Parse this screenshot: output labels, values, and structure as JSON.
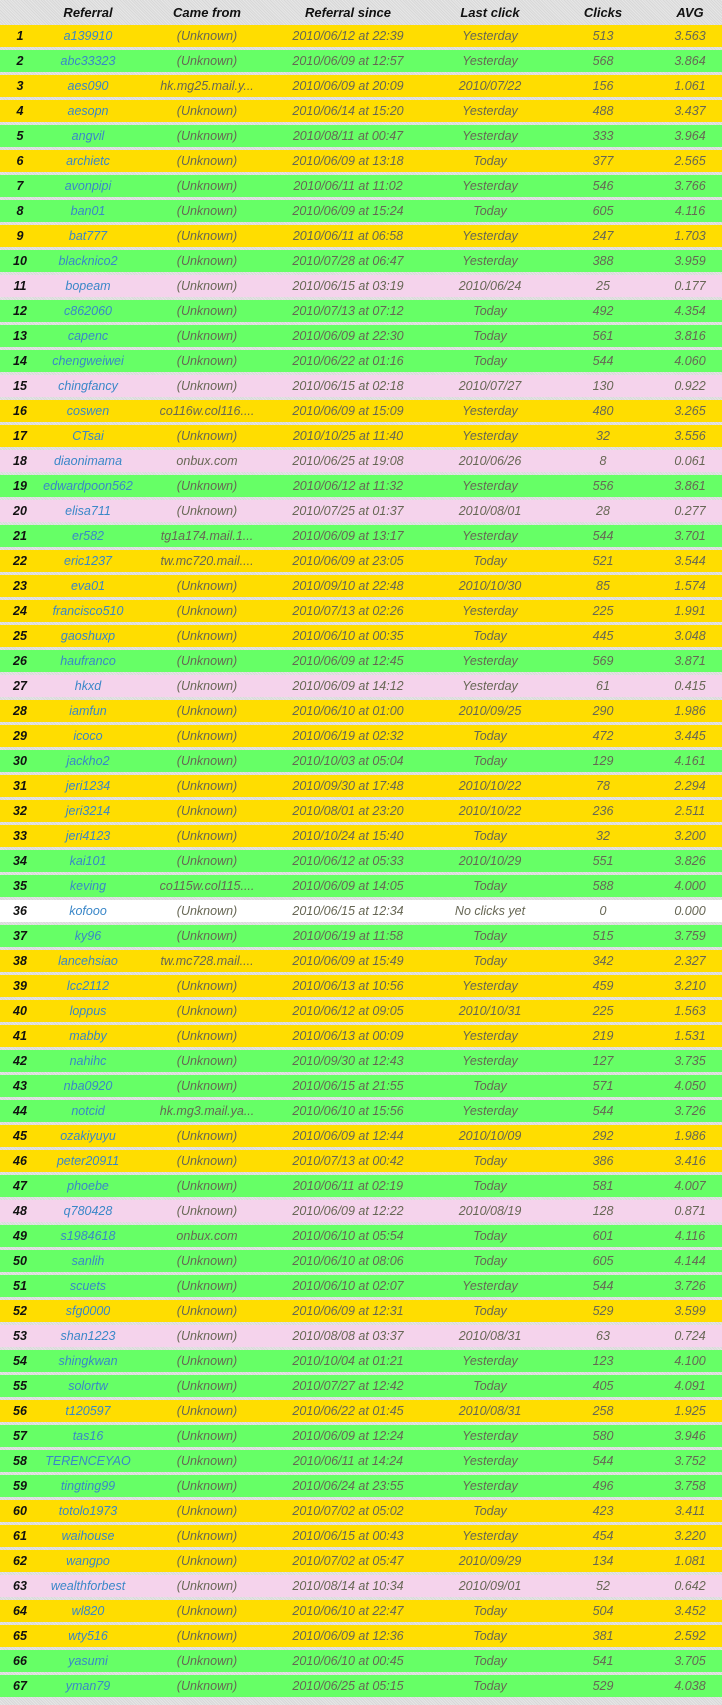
{
  "colors": {
    "yellow": "#ffdd00",
    "green": "#66ff66",
    "pink": "#f5d3ec",
    "white": "#ffffff"
  },
  "headers": {
    "referral": "Referral",
    "came_from": "Came from",
    "since": "Referral since",
    "last_click": "Last click",
    "clicks": "Clicks",
    "avg": "AVG"
  },
  "rows": [
    [
      "1",
      "a139910",
      "(Unknown)",
      "2010/06/12 at 22:39",
      "Yesterday",
      "513",
      "3.563",
      "yellow"
    ],
    [
      "2",
      "abc33323",
      "(Unknown)",
      "2010/06/09 at 12:57",
      "Yesterday",
      "568",
      "3.864",
      "green"
    ],
    [
      "3",
      "aes090",
      "hk.mg25.mail.y...",
      "2010/06/09 at 20:09",
      "2010/07/22",
      "156",
      "1.061",
      "yellow"
    ],
    [
      "4",
      "aesopn",
      "(Unknown)",
      "2010/06/14 at 15:20",
      "Yesterday",
      "488",
      "3.437",
      "yellow"
    ],
    [
      "5",
      "angvil",
      "(Unknown)",
      "2010/08/11 at 00:47",
      "Yesterday",
      "333",
      "3.964",
      "green"
    ],
    [
      "6",
      "archietc",
      "(Unknown)",
      "2010/06/09 at 13:18",
      "Today",
      "377",
      "2.565",
      "yellow"
    ],
    [
      "7",
      "avonpipi",
      "(Unknown)",
      "2010/06/11 at 11:02",
      "Yesterday",
      "546",
      "3.766",
      "green"
    ],
    [
      "8",
      "ban01",
      "(Unknown)",
      "2010/06/09 at 15:24",
      "Today",
      "605",
      "4.116",
      "green"
    ],
    [
      "9",
      "bat777",
      "(Unknown)",
      "2010/06/11 at 06:58",
      "Yesterday",
      "247",
      "1.703",
      "yellow"
    ],
    [
      "10",
      "blacknico2",
      "(Unknown)",
      "2010/07/28 at 06:47",
      "Yesterday",
      "388",
      "3.959",
      "green"
    ],
    [
      "11",
      "bopeam",
      "(Unknown)",
      "2010/06/15 at 03:19",
      "2010/06/24",
      "25",
      "0.177",
      "pink"
    ],
    [
      "12",
      "c862060",
      "(Unknown)",
      "2010/07/13 at 07:12",
      "Today",
      "492",
      "4.354",
      "green"
    ],
    [
      "13",
      "capenc",
      "(Unknown)",
      "2010/06/09 at 22:30",
      "Today",
      "561",
      "3.816",
      "green"
    ],
    [
      "14",
      "chengweiwei",
      "(Unknown)",
      "2010/06/22 at 01:16",
      "Today",
      "544",
      "4.060",
      "green"
    ],
    [
      "15",
      "chingfancy",
      "(Unknown)",
      "2010/06/15 at 02:18",
      "2010/07/27",
      "130",
      "0.922",
      "pink"
    ],
    [
      "16",
      "coswen",
      "co116w.col116....",
      "2010/06/09 at 15:09",
      "Yesterday",
      "480",
      "3.265",
      "yellow"
    ],
    [
      "17",
      "CTsai",
      "(Unknown)",
      "2010/10/25 at 11:40",
      "Yesterday",
      "32",
      "3.556",
      "yellow"
    ],
    [
      "18",
      "diaonimama",
      "onbux.com",
      "2010/06/25 at 19:08",
      "2010/06/26",
      "8",
      "0.061",
      "pink"
    ],
    [
      "19",
      "edwardpoon562",
      "(Unknown)",
      "2010/06/12 at 11:32",
      "Yesterday",
      "556",
      "3.861",
      "green"
    ],
    [
      "20",
      "elisa711",
      "(Unknown)",
      "2010/07/25 at 01:37",
      "2010/08/01",
      "28",
      "0.277",
      "pink"
    ],
    [
      "21",
      "er582",
      "tg1a174.mail.1...",
      "2010/06/09 at 13:17",
      "Yesterday",
      "544",
      "3.701",
      "green"
    ],
    [
      "22",
      "eric1237",
      "tw.mc720.mail....",
      "2010/06/09 at 23:05",
      "Today",
      "521",
      "3.544",
      "yellow"
    ],
    [
      "23",
      "eva01",
      "(Unknown)",
      "2010/09/10 at 22:48",
      "2010/10/30",
      "85",
      "1.574",
      "yellow"
    ],
    [
      "24",
      "francisco510",
      "(Unknown)",
      "2010/07/13 at 02:26",
      "Yesterday",
      "225",
      "1.991",
      "yellow"
    ],
    [
      "25",
      "gaoshuxp",
      "(Unknown)",
      "2010/06/10 at 00:35",
      "Today",
      "445",
      "3.048",
      "yellow"
    ],
    [
      "26",
      "haufranco",
      "(Unknown)",
      "2010/06/09 at 12:45",
      "Yesterday",
      "569",
      "3.871",
      "green"
    ],
    [
      "27",
      "hkxd",
      "(Unknown)",
      "2010/06/09 at 14:12",
      "Yesterday",
      "61",
      "0.415",
      "pink"
    ],
    [
      "28",
      "iamfun",
      "(Unknown)",
      "2010/06/10 at 01:00",
      "2010/09/25",
      "290",
      "1.986",
      "yellow"
    ],
    [
      "29",
      "icoco",
      "(Unknown)",
      "2010/06/19 at 02:32",
      "Today",
      "472",
      "3.445",
      "yellow"
    ],
    [
      "30",
      "jackho2",
      "(Unknown)",
      "2010/10/03 at 05:04",
      "Today",
      "129",
      "4.161",
      "green"
    ],
    [
      "31",
      "jeri1234",
      "(Unknown)",
      "2010/09/30 at 17:48",
      "2010/10/22",
      "78",
      "2.294",
      "yellow"
    ],
    [
      "32",
      "jeri3214",
      "(Unknown)",
      "2010/08/01 at 23:20",
      "2010/10/22",
      "236",
      "2.511",
      "yellow"
    ],
    [
      "33",
      "jeri4123",
      "(Unknown)",
      "2010/10/24 at 15:40",
      "Today",
      "32",
      "3.200",
      "yellow"
    ],
    [
      "34",
      "kai101",
      "(Unknown)",
      "2010/06/12 at 05:33",
      "2010/10/29",
      "551",
      "3.826",
      "green"
    ],
    [
      "35",
      "keving",
      "co115w.col115....",
      "2010/06/09 at 14:05",
      "Today",
      "588",
      "4.000",
      "green"
    ],
    [
      "36",
      "kofooo",
      "(Unknown)",
      "2010/06/15 at 12:34",
      "No clicks yet",
      "0",
      "0.000",
      "white"
    ],
    [
      "37",
      "ky96",
      "(Unknown)",
      "2010/06/19 at 11:58",
      "Today",
      "515",
      "3.759",
      "green"
    ],
    [
      "38",
      "lancehsiao",
      "tw.mc728.mail....",
      "2010/06/09 at 15:49",
      "Today",
      "342",
      "2.327",
      "yellow"
    ],
    [
      "39",
      "lcc2112",
      "(Unknown)",
      "2010/06/13 at 10:56",
      "Yesterday",
      "459",
      "3.210",
      "yellow"
    ],
    [
      "40",
      "loppus",
      "(Unknown)",
      "2010/06/12 at 09:05",
      "2010/10/31",
      "225",
      "1.563",
      "yellow"
    ],
    [
      "41",
      "mabby",
      "(Unknown)",
      "2010/06/13 at 00:09",
      "Yesterday",
      "219",
      "1.531",
      "yellow"
    ],
    [
      "42",
      "nahihc",
      "(Unknown)",
      "2010/09/30 at 12:43",
      "Yesterday",
      "127",
      "3.735",
      "green"
    ],
    [
      "43",
      "nba0920",
      "(Unknown)",
      "2010/06/15 at 21:55",
      "Today",
      "571",
      "4.050",
      "green"
    ],
    [
      "44",
      "notcid",
      "hk.mg3.mail.ya...",
      "2010/06/10 at 15:56",
      "Yesterday",
      "544",
      "3.726",
      "green"
    ],
    [
      "45",
      "ozakiyuyu",
      "(Unknown)",
      "2010/06/09 at 12:44",
      "2010/10/09",
      "292",
      "1.986",
      "yellow"
    ],
    [
      "46",
      "peter20911",
      "(Unknown)",
      "2010/07/13 at 00:42",
      "Today",
      "386",
      "3.416",
      "yellow"
    ],
    [
      "47",
      "phoebe",
      "(Unknown)",
      "2010/06/11 at 02:19",
      "Today",
      "581",
      "4.007",
      "green"
    ],
    [
      "48",
      "q780428",
      "(Unknown)",
      "2010/06/09 at 12:22",
      "2010/08/19",
      "128",
      "0.871",
      "pink"
    ],
    [
      "49",
      "s1984618",
      "onbux.com",
      "2010/06/10 at 05:54",
      "Today",
      "601",
      "4.116",
      "green"
    ],
    [
      "50",
      "sanlih",
      "(Unknown)",
      "2010/06/10 at 08:06",
      "Today",
      "605",
      "4.144",
      "green"
    ],
    [
      "51",
      "scuets",
      "(Unknown)",
      "2010/06/10 at 02:07",
      "Yesterday",
      "544",
      "3.726",
      "green"
    ],
    [
      "52",
      "sfg0000",
      "(Unknown)",
      "2010/06/09 at 12:31",
      "Today",
      "529",
      "3.599",
      "yellow"
    ],
    [
      "53",
      "shan1223",
      "(Unknown)",
      "2010/08/08 at 03:37",
      "2010/08/31",
      "63",
      "0.724",
      "pink"
    ],
    [
      "54",
      "shingkwan",
      "(Unknown)",
      "2010/10/04 at 01:21",
      "Yesterday",
      "123",
      "4.100",
      "green"
    ],
    [
      "55",
      "solortw",
      "(Unknown)",
      "2010/07/27 at 12:42",
      "Today",
      "405",
      "4.091",
      "green"
    ],
    [
      "56",
      "t120597",
      "(Unknown)",
      "2010/06/22 at 01:45",
      "2010/08/31",
      "258",
      "1.925",
      "yellow"
    ],
    [
      "57",
      "tas16",
      "(Unknown)",
      "2010/06/09 at 12:24",
      "Yesterday",
      "580",
      "3.946",
      "green"
    ],
    [
      "58",
      "TERENCEYAO",
      "(Unknown)",
      "2010/06/11 at 14:24",
      "Yesterday",
      "544",
      "3.752",
      "green"
    ],
    [
      "59",
      "tingting99",
      "(Unknown)",
      "2010/06/24 at 23:55",
      "Yesterday",
      "496",
      "3.758",
      "green"
    ],
    [
      "60",
      "totolo1973",
      "(Unknown)",
      "2010/07/02 at 05:02",
      "Today",
      "423",
      "3.411",
      "yellow"
    ],
    [
      "61",
      "waihouse",
      "(Unknown)",
      "2010/06/15 at 00:43",
      "Yesterday",
      "454",
      "3.220",
      "yellow"
    ],
    [
      "62",
      "wangpo",
      "(Unknown)",
      "2010/07/02 at 05:47",
      "2010/09/29",
      "134",
      "1.081",
      "yellow"
    ],
    [
      "63",
      "wealthforbest",
      "(Unknown)",
      "2010/08/14 at 10:34",
      "2010/09/01",
      "52",
      "0.642",
      "pink"
    ],
    [
      "64",
      "wl820",
      "(Unknown)",
      "2010/06/10 at 22:47",
      "Today",
      "504",
      "3.452",
      "yellow"
    ],
    [
      "65",
      "wty516",
      "(Unknown)",
      "2010/06/09 at 12:36",
      "Today",
      "381",
      "2.592",
      "yellow"
    ],
    [
      "66",
      "yasumi",
      "(Unknown)",
      "2010/06/10 at 00:45",
      "Today",
      "541",
      "3.705",
      "green"
    ],
    [
      "67",
      "yman79",
      "(Unknown)",
      "2010/06/25 at 05:15",
      "Today",
      "529",
      "4.038",
      "green"
    ]
  ]
}
